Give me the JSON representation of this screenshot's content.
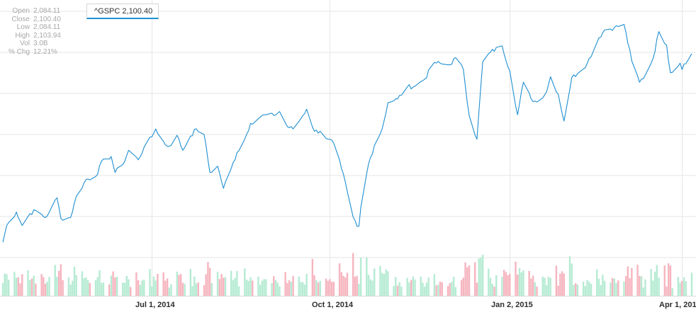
{
  "info_panel": {
    "rows": [
      {
        "label": "Open",
        "value": "2,084.11"
      },
      {
        "label": "Close",
        "value": "2,100.40"
      },
      {
        "label": "Low",
        "value": "2,084.11"
      },
      {
        "label": "High",
        "value": "2,103.94"
      },
      {
        "label": "Vol",
        "value": "3.0B"
      },
      {
        "label": "% Chg",
        "value": "12.21%"
      }
    ]
  },
  "ticker_label": "^GSPC 2,100.40",
  "colors": {
    "line": "#1f8fd1",
    "volume_up": "#b6ebd3",
    "volume_down": "#f6b5bf",
    "grid": "#e6e6e6"
  },
  "chart_data": {
    "type": "line",
    "title": "",
    "xlabel": "",
    "ylabel": "",
    "x_tick_labels": [
      "Jul 1, 2014",
      "Oct 1, 2014",
      "Jan 2, 2015",
      "Apr 1, 201"
    ],
    "x_tick_dates": [
      "2014-07-01",
      "2014-10-01",
      "2015-01-02",
      "2015-04-01"
    ],
    "x_range": [
      "2014-04-15",
      "2015-04-06"
    ],
    "ylim": [
      1810,
      2130
    ],
    "grid": true,
    "series": [
      {
        "name": "^GSPC",
        "points": [
          [
            "2014-04-15",
            1842
          ],
          [
            "2014-04-17",
            1863
          ],
          [
            "2014-04-22",
            1880
          ],
          [
            "2014-04-25",
            1863
          ],
          [
            "2014-04-29",
            1878
          ],
          [
            "2014-05-02",
            1882
          ],
          [
            "2014-05-07",
            1873
          ],
          [
            "2014-05-09",
            1880
          ],
          [
            "2014-05-13",
            1898
          ],
          [
            "2014-05-15",
            1872
          ],
          [
            "2014-05-20",
            1873
          ],
          [
            "2014-05-23",
            1900
          ],
          [
            "2014-05-28",
            1921
          ],
          [
            "2014-06-02",
            1925
          ],
          [
            "2014-06-06",
            1947
          ],
          [
            "2014-06-10",
            1950
          ],
          [
            "2014-06-12",
            1930
          ],
          [
            "2014-06-16",
            1940
          ],
          [
            "2014-06-19",
            1958
          ],
          [
            "2014-06-24",
            1946
          ],
          [
            "2014-06-27",
            1962
          ],
          [
            "2014-07-01",
            1975
          ],
          [
            "2014-07-03",
            1985
          ],
          [
            "2014-07-08",
            1965
          ],
          [
            "2014-07-10",
            1963
          ],
          [
            "2014-07-14",
            1977
          ],
          [
            "2014-07-17",
            1958
          ],
          [
            "2014-07-21",
            1976
          ],
          [
            "2014-07-24",
            1985
          ],
          [
            "2014-07-28",
            1978
          ],
          [
            "2014-07-31",
            1930
          ],
          [
            "2014-08-04",
            1938
          ],
          [
            "2014-08-07",
            1910
          ],
          [
            "2014-08-11",
            1935
          ],
          [
            "2014-08-14",
            1955
          ],
          [
            "2014-08-18",
            1972
          ],
          [
            "2014-08-21",
            1992
          ],
          [
            "2014-08-26",
            2000
          ],
          [
            "2014-08-29",
            2003
          ],
          [
            "2014-09-02",
            2002
          ],
          [
            "2014-09-05",
            2007
          ],
          [
            "2014-09-09",
            1988
          ],
          [
            "2014-09-12",
            1985
          ],
          [
            "2014-09-16",
            1998
          ],
          [
            "2014-09-19",
            2010
          ],
          [
            "2014-09-23",
            1982
          ],
          [
            "2014-09-26",
            1982
          ],
          [
            "2014-09-30",
            1972
          ],
          [
            "2014-10-03",
            1967
          ],
          [
            "2014-10-07",
            1935
          ],
          [
            "2014-10-10",
            1906
          ],
          [
            "2014-10-13",
            1874
          ],
          [
            "2014-10-15",
            1862
          ],
          [
            "2014-10-16",
            1862
          ],
          [
            "2014-10-17",
            1886
          ],
          [
            "2014-10-21",
            1941
          ],
          [
            "2014-10-24",
            1964
          ],
          [
            "2014-10-28",
            1985
          ],
          [
            "2014-10-31",
            2018
          ],
          [
            "2014-11-05",
            2023
          ],
          [
            "2014-11-10",
            2038
          ],
          [
            "2014-11-14",
            2039
          ],
          [
            "2014-11-19",
            2048
          ],
          [
            "2014-11-24",
            2069
          ],
          [
            "2014-11-28",
            2067
          ],
          [
            "2014-12-02",
            2066
          ],
          [
            "2014-12-05",
            2075
          ],
          [
            "2014-12-09",
            2060
          ],
          [
            "2014-12-12",
            2002
          ],
          [
            "2014-12-16",
            1972
          ],
          [
            "2014-12-19",
            2070
          ],
          [
            "2014-12-23",
            2082
          ],
          [
            "2014-12-29",
            2090
          ],
          [
            "2015-01-02",
            2058
          ],
          [
            "2015-01-06",
            2003
          ],
          [
            "2015-01-09",
            2044
          ],
          [
            "2015-01-13",
            2023
          ],
          [
            "2015-01-16",
            2019
          ],
          [
            "2015-01-21",
            2032
          ],
          [
            "2015-01-23",
            2051
          ],
          [
            "2015-01-27",
            2029
          ],
          [
            "2015-01-30",
            1995
          ],
          [
            "2015-02-03",
            2050
          ],
          [
            "2015-02-06",
            2055
          ],
          [
            "2015-02-11",
            2068
          ],
          [
            "2015-02-17",
            2100
          ],
          [
            "2015-02-20",
            2110
          ],
          [
            "2015-02-25",
            2113
          ],
          [
            "2015-03-02",
            2117
          ],
          [
            "2015-03-06",
            2071
          ],
          [
            "2015-03-10",
            2044
          ],
          [
            "2015-03-13",
            2053
          ],
          [
            "2015-03-17",
            2074
          ],
          [
            "2015-03-20",
            2108
          ],
          [
            "2015-03-24",
            2091
          ],
          [
            "2015-03-26",
            2056
          ],
          [
            "2015-03-31",
            2068
          ],
          [
            "2015-04-01",
            2060
          ],
          [
            "2015-04-02",
            2067
          ],
          [
            "2015-04-06",
            2080
          ]
        ]
      }
    ],
    "volume": {
      "series_name": "Vol",
      "unit": "B",
      "ylim": [
        0,
        8
      ],
      "direction_legend": {
        "up": "volume_up",
        "down": "volume_down"
      }
    }
  }
}
